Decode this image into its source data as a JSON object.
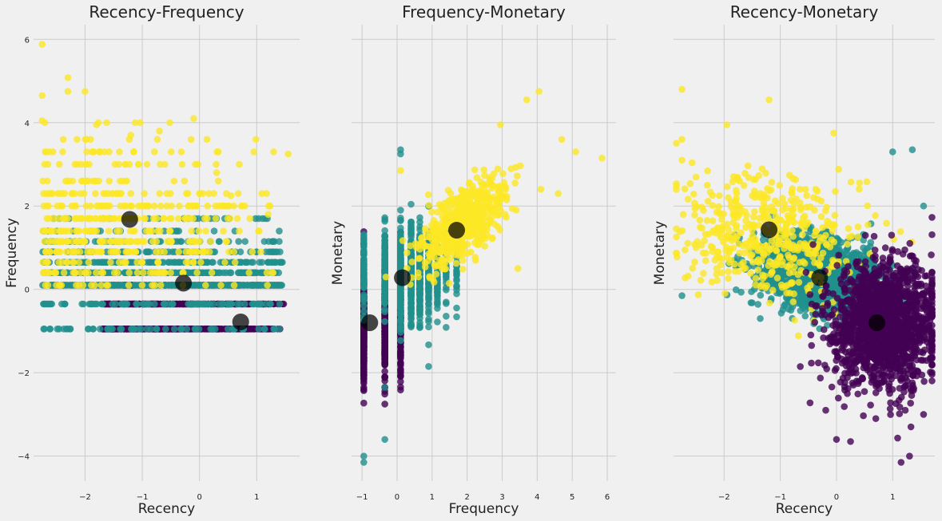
{
  "chart_data": [
    {
      "type": "scatter",
      "title": "Recency-Frequency",
      "xlabel": "Recency",
      "ylabel": "Frequency",
      "xlim": [
        -2.9,
        1.75
      ],
      "ylim": [
        -4.6,
        6.35
      ],
      "xticks": [
        -2,
        -1,
        0,
        1
      ],
      "yticks": [
        -4,
        -2,
        0,
        2,
        4,
        6
      ],
      "grid": true,
      "clusters": [
        {
          "color": "#440154",
          "x_range": [
            -1.7,
            1.55
          ],
          "y_levels": [
            -0.95,
            -0.35,
            0.1
          ],
          "weights": [
            0.55,
            0.35,
            0.1
          ],
          "x_skew": 0.6
        },
        {
          "color": "#21908d",
          "x_range": [
            -2.75,
            1.45
          ],
          "y_levels": [
            -0.95,
            -0.35,
            0.1,
            0.4,
            0.65,
            0.9,
            1.15,
            1.4,
            1.7
          ],
          "weights": [
            0.06,
            0.1,
            0.26,
            0.22,
            0.16,
            0.1,
            0.05,
            0.03,
            0.02
          ],
          "x_skew": 1.0
        },
        {
          "color": "#fde725",
          "x_range": [
            -2.75,
            1.55
          ],
          "y_levels": [
            0.1,
            0.4,
            0.65,
            0.9,
            1.15,
            1.4,
            1.7,
            2.0,
            2.3,
            2.6,
            3.0,
            3.3,
            3.6,
            4.0
          ],
          "weights": [
            0.04,
            0.06,
            0.08,
            0.1,
            0.12,
            0.12,
            0.12,
            0.1,
            0.08,
            0.06,
            0.05,
            0.03,
            0.02,
            0.02
          ],
          "x_skew": 0.5
        },
        {
          "color": "#fde725",
          "points": [
            [
              -2.75,
              5.88
            ],
            [
              -2.75,
              4.65
            ],
            [
              -2.75,
              4.05
            ],
            [
              -2.3,
              5.08
            ],
            [
              -2.3,
              4.75
            ],
            [
              -2.0,
              4.75
            ],
            [
              -1.8,
              3.95
            ],
            [
              -1.2,
              3.7
            ],
            [
              -0.7,
              3.8
            ],
            [
              -0.1,
              4.1
            ],
            [
              1.55,
              3.25
            ],
            [
              1.2,
              1.8
            ],
            [
              0.55,
              2.25
            ],
            [
              0.3,
              2.8
            ]
          ]
        }
      ],
      "centroids": [
        [
          -1.22,
          1.68
        ],
        [
          -0.28,
          0.15
        ],
        [
          0.72,
          -0.78
        ]
      ]
    },
    {
      "type": "scatter",
      "title": "Frequency-Monetary",
      "xlabel": "Frequency",
      "ylabel": "Monetary",
      "xlim": [
        -1.3,
        6.25
      ],
      "ylim": [
        -4.6,
        6.35
      ],
      "xticks": [
        -1,
        0,
        1,
        2,
        3,
        4,
        5,
        6
      ],
      "yticks": [],
      "grid": true,
      "clusters": [
        {
          "color": "#440154",
          "x_levels": [
            -0.95,
            -0.35,
            0.1
          ],
          "x_weights": [
            0.55,
            0.3,
            0.15
          ],
          "y_mean": -0.9,
          "y_sd": 0.7
        },
        {
          "color": "#21908d",
          "x_levels": [
            -0.95,
            -0.35,
            0.1,
            0.4,
            0.65,
            0.9,
            1.15,
            1.4,
            1.7
          ],
          "x_weights": [
            0.05,
            0.15,
            0.25,
            0.2,
            0.15,
            0.1,
            0.05,
            0.03,
            0.02
          ],
          "y_mean": 0.35,
          "y_sd": 0.55
        },
        {
          "color": "#fde725",
          "scatter_center": [
            1.9,
            1.6
          ],
          "scatter_sd": [
            0.65,
            0.55
          ],
          "corr": 0.7
        },
        {
          "color": "#fde725",
          "points": [
            [
              4.05,
              4.75
            ],
            [
              3.7,
              4.55
            ],
            [
              4.7,
              3.6
            ],
            [
              5.1,
              3.3
            ],
            [
              5.85,
              3.15
            ],
            [
              4.6,
              2.3
            ],
            [
              3.45,
              0.5
            ],
            [
              2.95,
              3.95
            ],
            [
              0.1,
              2.85
            ]
          ]
        },
        {
          "color": "#21908d",
          "points": [
            [
              0.1,
              3.35
            ],
            [
              0.1,
              3.25
            ],
            [
              -0.35,
              -2.35
            ],
            [
              0.9,
              -1.85
            ],
            [
              -0.35,
              -3.6
            ],
            [
              -0.95,
              -4.0
            ],
            [
              -0.95,
              -4.15
            ]
          ]
        }
      ],
      "centroids": [
        [
          -0.78,
          -0.8
        ],
        [
          0.15,
          0.28
        ],
        [
          1.7,
          1.42
        ]
      ]
    },
    {
      "type": "scatter",
      "title": "Recency-Monetary",
      "xlabel": "Recency",
      "ylabel": "Monetary",
      "xlim": [
        -2.9,
        1.75
      ],
      "ylim": [
        -4.6,
        6.35
      ],
      "xticks": [
        -2,
        -1,
        0,
        1
      ],
      "yticks": [],
      "grid": true,
      "clusters": [
        {
          "color": "#21908d",
          "scatter_center": [
            -0.3,
            0.35
          ],
          "scatter_sd": [
            0.55,
            0.45
          ],
          "corr": -0.2
        },
        {
          "color": "#fde725",
          "scatter_center": [
            -1.2,
            1.3
          ],
          "scatter_sd": [
            0.75,
            0.75
          ],
          "corr": -0.1
        },
        {
          "color": "#440154",
          "scatter_center": [
            0.85,
            -0.85
          ],
          "scatter_sd": [
            0.45,
            0.75
          ],
          "corr": 0.05
        },
        {
          "color": "#fde725",
          "points": [
            [
              -2.75,
              4.8
            ],
            [
              -1.2,
              4.55
            ],
            [
              -1.95,
              3.95
            ],
            [
              -0.05,
              3.75
            ],
            [
              -2.75,
              3.6
            ],
            [
              -2.75,
              3.1
            ],
            [
              -2.3,
              2.5
            ]
          ]
        },
        {
          "color": "#21908d",
          "points": [
            [
              1.35,
              3.35
            ],
            [
              1.0,
              3.3
            ],
            [
              -2.75,
              -0.15
            ],
            [
              1.55,
              2.0
            ]
          ]
        },
        {
          "color": "#440154",
          "points": [
            [
              0.0,
              -3.6
            ],
            [
              0.25,
              -3.65
            ],
            [
              1.15,
              -4.15
            ],
            [
              1.3,
              -4.0
            ],
            [
              0.7,
              -3.1
            ],
            [
              1.55,
              -3.0
            ]
          ]
        }
      ],
      "centroids": [
        [
          -1.2,
          1.43
        ],
        [
          -0.3,
          0.28
        ],
        [
          0.72,
          -0.8
        ]
      ]
    }
  ]
}
